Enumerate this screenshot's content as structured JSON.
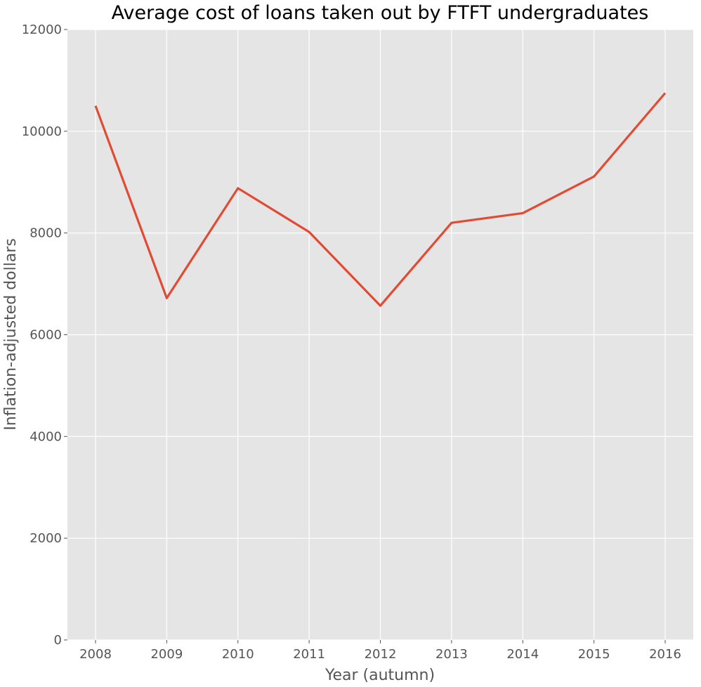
{
  "chart_data": {
    "type": "line",
    "title": "Average cost of loans taken out by FTFT undergraduates",
    "xlabel": "Year (autumn)",
    "ylabel": "Inflation-adjusted dollars",
    "x": [
      "2008",
      "2009",
      "2010",
      "2011",
      "2012",
      "2013",
      "2014",
      "2015",
      "2016"
    ],
    "series": [
      {
        "values": [
          10500,
          6720,
          8880,
          8020,
          6570,
          8200,
          8390,
          9110,
          10750
        ],
        "color": "#e24a33"
      }
    ],
    "ylim": [
      0,
      12000
    ],
    "yticks": [
      0,
      2000,
      4000,
      6000,
      8000,
      10000,
      12000
    ],
    "grid": true,
    "background": "#e5e5e5",
    "legend": "none"
  }
}
